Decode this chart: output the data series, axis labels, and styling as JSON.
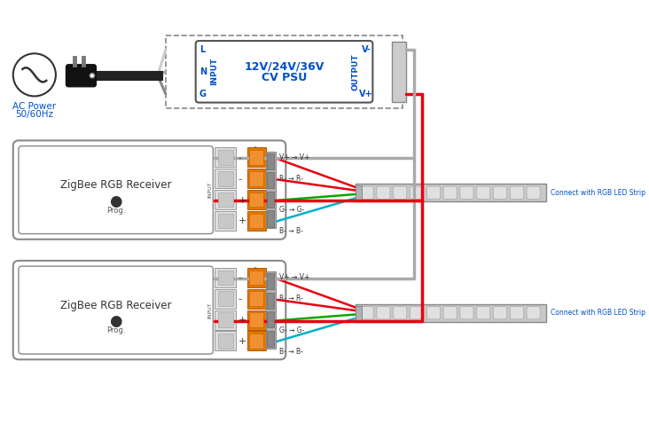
{
  "bg_color": "#ffffff",
  "ac_text1": "AC Power",
  "ac_text2": "50/60Hz",
  "psu_label1": "12V/24V/36V",
  "psu_label2": "CV PSU",
  "input_label": "INPUT",
  "output_label": "OUTPUT",
  "lng_labels": [
    "L",
    "N",
    "G"
  ],
  "vo_labels": [
    "V-",
    "V+"
  ],
  "receiver_label": "ZigBee RGB Receiver",
  "prog_label": "Prog.",
  "connect_label": "Connect with RGB LED Strip",
  "label_blue": "#0050c8",
  "dark_text": "#333333",
  "mid_text": "#555555",
  "red": "#e80010",
  "gray": "#aaaaaa",
  "light_gray": "#cccccc",
  "dark_gray": "#666666",
  "black": "#111111",
  "orange": "#e07800",
  "green": "#00aa00",
  "blue_wire": "#1060e8",
  "cyan_wire": "#00b0c8",
  "terminal_orange": "#e07800",
  "connector_gray": "#b0b0b0",
  "box_edge": "#888888",
  "inner_edge": "#555555"
}
